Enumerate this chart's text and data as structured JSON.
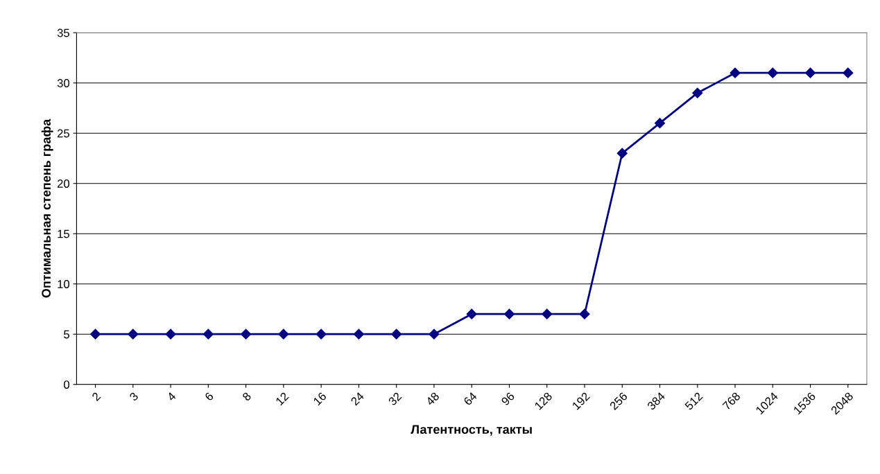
{
  "chart_data": {
    "type": "line",
    "xlabel": "Латентность, такты",
    "ylabel": "Оптимальная степень графа",
    "categories": [
      "2",
      "3",
      "4",
      "6",
      "8",
      "12",
      "16",
      "24",
      "32",
      "48",
      "64",
      "96",
      "128",
      "192",
      "256",
      "384",
      "512",
      "768",
      "1024",
      "1536",
      "2048"
    ],
    "values": [
      5,
      5,
      5,
      5,
      5,
      5,
      5,
      5,
      5,
      5,
      7,
      7,
      7,
      7,
      23,
      26,
      29,
      31,
      31,
      31,
      31
    ],
    "color": "#000080",
    "marker": "diamond",
    "line_style": "solid",
    "ylim": [
      0,
      35
    ],
    "yticks": [
      0,
      5,
      10,
      15,
      20,
      25,
      30,
      35
    ],
    "grid": "y"
  }
}
